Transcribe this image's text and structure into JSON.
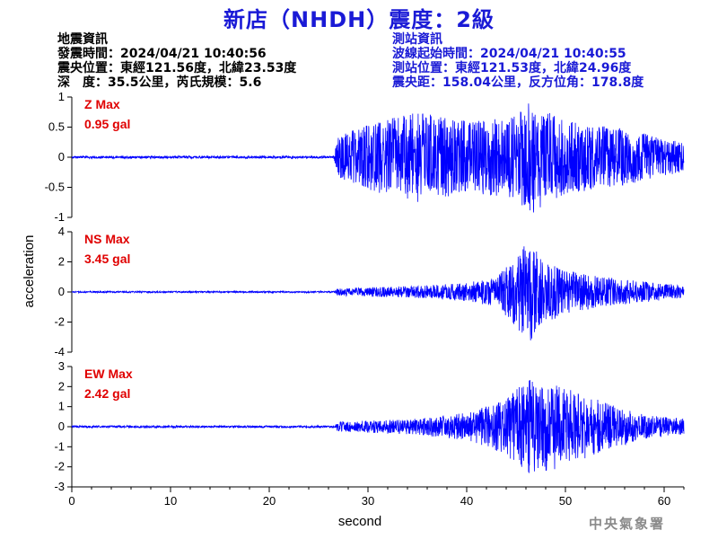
{
  "title": "新店（NHDH）震度：2級",
  "earthquake_info": {
    "heading": "地震資訊",
    "origin_time": "發震時間：2024/04/21 10:40:56",
    "epicenter": "震央位置：東經121.56度，北緯23.53度",
    "depth_magnitude": "深　度：35.5公里，芮氏規模：5.6"
  },
  "station_info": {
    "heading": "測站資訊",
    "arrival_time": "波線起始時間：2024/04/21 10:40:55",
    "station_location": "測站位置：東經121.53度，北緯24.96度",
    "distance_azimuth": "震央距：158.04公里，反方位角：178.8度"
  },
  "credit": "中央氣象署",
  "colors": {
    "trace": "#0000ff",
    "max_label": "#e00000",
    "title": "#1a1ad6"
  },
  "chart_data": [
    {
      "type": "line",
      "component": "Z",
      "max_label": "Z Max",
      "max_value": "0.95 gal",
      "peak": 0.95,
      "ylim": [
        -1,
        1
      ],
      "yticks": [
        "1",
        "0.5",
        "0",
        "-0.5",
        "-1"
      ],
      "yticks_values": [
        1,
        0.5,
        0,
        -0.5,
        -1
      ],
      "envelope": [
        [
          0,
          0.02
        ],
        [
          26.5,
          0.02
        ],
        [
          27,
          0.35
        ],
        [
          30,
          0.55
        ],
        [
          35,
          0.75
        ],
        [
          40,
          0.6
        ],
        [
          45,
          0.7
        ],
        [
          46.5,
          0.95
        ],
        [
          50,
          0.6
        ],
        [
          55,
          0.5
        ],
        [
          62,
          0.25
        ]
      ]
    },
    {
      "type": "line",
      "component": "NS",
      "max_label": "NS Max",
      "max_value": "3.45 gal",
      "peak": 3.45,
      "ylim": [
        -4,
        4
      ],
      "yticks": [
        "4",
        "2",
        "0",
        "-2",
        "-4"
      ],
      "yticks_values": [
        4,
        2,
        0,
        -2,
        -4
      ],
      "envelope": [
        [
          0,
          0.05
        ],
        [
          26.5,
          0.05
        ],
        [
          27,
          0.25
        ],
        [
          35,
          0.4
        ],
        [
          40,
          0.6
        ],
        [
          43,
          1.0
        ],
        [
          45.5,
          2.8
        ],
        [
          46.2,
          3.45
        ],
        [
          48,
          2.0
        ],
        [
          51,
          1.3
        ],
        [
          55,
          0.9
        ],
        [
          62,
          0.4
        ]
      ]
    },
    {
      "type": "line",
      "component": "EW",
      "max_label": "EW Max",
      "max_value": "2.42 gal",
      "peak": 2.42,
      "ylim": [
        -3,
        3
      ],
      "yticks": [
        "3",
        "2",
        "1",
        "0",
        "-1",
        "-2",
        "-3"
      ],
      "yticks_values": [
        3,
        2,
        1,
        0,
        -1,
        -2,
        -3
      ],
      "envelope": [
        [
          0,
          0.05
        ],
        [
          26.5,
          0.05
        ],
        [
          27,
          0.25
        ],
        [
          35,
          0.4
        ],
        [
          40,
          0.7
        ],
        [
          44,
          1.4
        ],
        [
          46,
          2.42
        ],
        [
          50,
          2.0
        ],
        [
          54,
          1.2
        ],
        [
          58,
          0.6
        ],
        [
          62,
          0.4
        ]
      ]
    }
  ],
  "x_axis": {
    "label": "second",
    "xlim": [
      0,
      62
    ],
    "ticks": [
      "0",
      "10",
      "20",
      "30",
      "40",
      "50",
      "60"
    ],
    "tick_values": [
      0,
      10,
      20,
      30,
      40,
      50,
      60
    ]
  },
  "y_axis": {
    "label": "acceleration"
  }
}
